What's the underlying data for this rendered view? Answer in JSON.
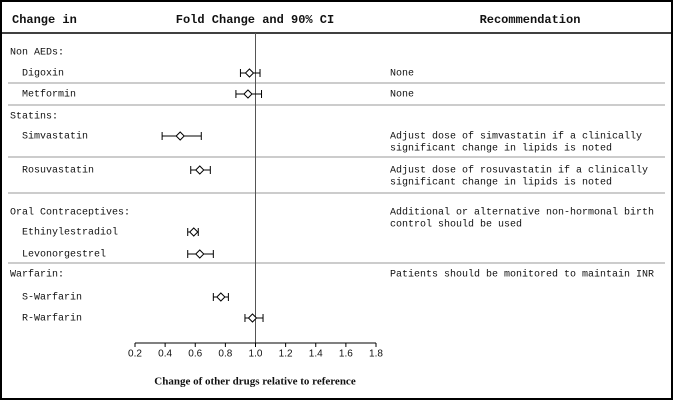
{
  "chart_data": {
    "type": "forest",
    "headers": [
      "Change in",
      "Fold Change and 90% CI",
      "Recommendation"
    ],
    "xlabel": "Change of other drugs relative to reference",
    "xlim": [
      0.2,
      1.8
    ],
    "xticks": [
      0.2,
      0.4,
      0.6,
      0.8,
      {
        "value": 1,
        "label": "1.0"
      },
      1.2,
      1.4,
      1.6,
      1.8
    ],
    "reference": 1,
    "rows": [
      {
        "label": "Non AEDs:"
      },
      {
        "label": "Digoxin",
        "value": 0.96,
        "ci_low": 0.9,
        "ci_high": 1.03,
        "recommendation": [
          "None"
        ]
      },
      {
        "label": "Metformin",
        "value": 0.95,
        "ci_low": 0.87,
        "ci_high": 1.04,
        "recommendation": [
          "None"
        ]
      },
      {
        "label": "Statins:"
      },
      {
        "label": "Simvastatin",
        "value": 0.5,
        "ci_low": 0.38,
        "ci_high": 0.64,
        "recommendation": [
          "Adjust dose of simvastatin if a clinically",
          "significant change in lipids is noted"
        ]
      },
      {
        "label": "Rosuvastatin",
        "value": 0.63,
        "ci_low": 0.57,
        "ci_high": 0.7,
        "recommendation": [
          "Adjust dose of rosuvastatin if a clinically",
          "significant change in lipids is noted"
        ]
      },
      {
        "label": "Oral Contraceptives:",
        "recommendation": [
          "Additional or alternative non-hormonal birth",
          "control should be used"
        ]
      },
      {
        "label": "Ethinylestradiol",
        "value": 0.59,
        "ci_low": 0.55,
        "ci_high": 0.62
      },
      {
        "label": "Levonorgestrel",
        "value": 0.63,
        "ci_low": 0.55,
        "ci_high": 0.72
      },
      {
        "label": "Warfarin:",
        "recommendation": [
          "Patients should be monitored to maintain INR"
        ]
      },
      {
        "label": "S-Warfarin",
        "value": 0.77,
        "ci_low": 0.72,
        "ci_high": 0.82
      },
      {
        "label": "R-Warfarin",
        "value": 0.98,
        "ci_low": 0.93,
        "ci_high": 1.05
      }
    ]
  }
}
